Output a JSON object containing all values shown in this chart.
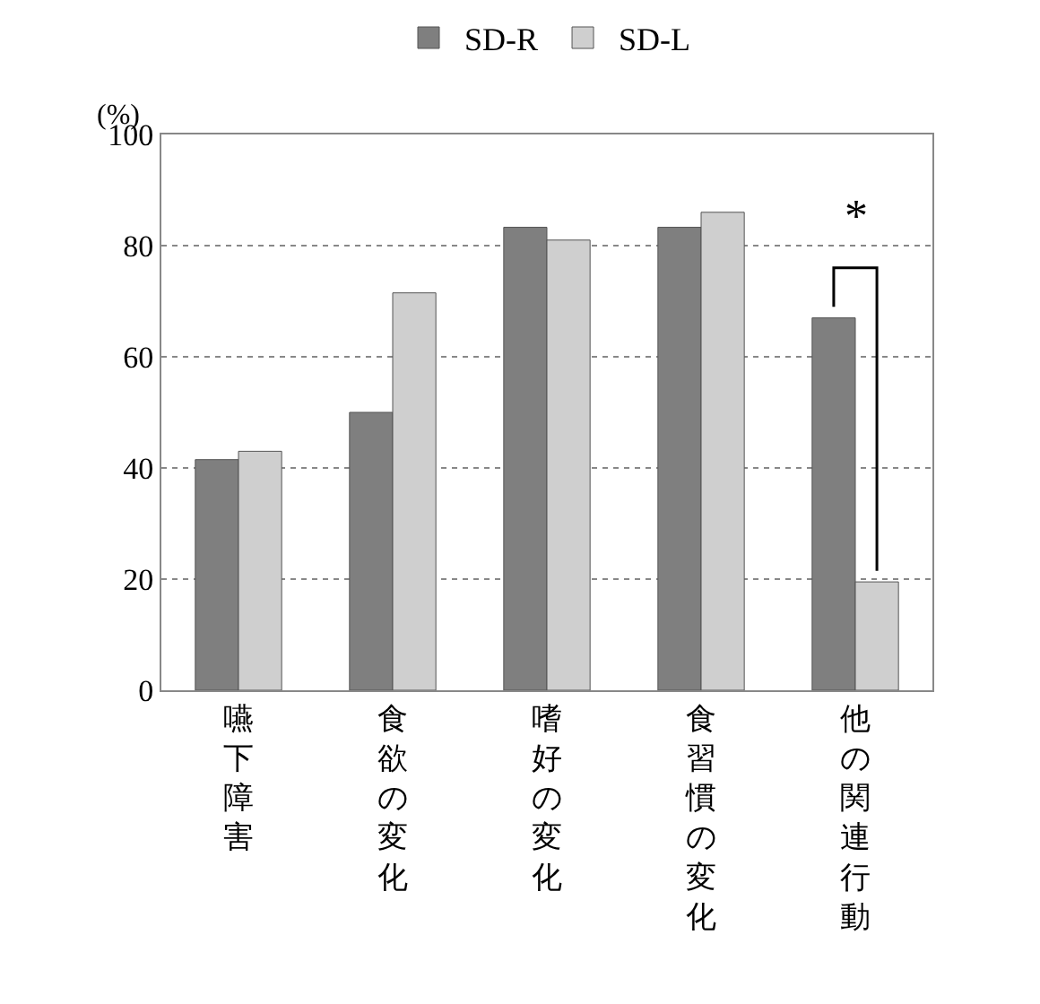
{
  "chart_data": {
    "type": "bar",
    "ylabel": "(%)",
    "categories": [
      "嚥下障害",
      "食欲の変化",
      "嗜好の変化",
      "食習慣の変化",
      "他の関連行動"
    ],
    "series": [
      {
        "name": "SD-R",
        "color": "#7f7f7f",
        "values": [
          41.5,
          50,
          83.3,
          83.3,
          67
        ]
      },
      {
        "name": "SD-L",
        "color": "#cfcfcf",
        "values": [
          43,
          71.5,
          81,
          86,
          19.5
        ]
      }
    ],
    "ylim": [
      0,
      100
    ],
    "yticks": [
      0,
      20,
      40,
      60,
      80,
      100
    ],
    "grid": "y",
    "legend": "top",
    "annotations": [
      "*"
    ]
  }
}
